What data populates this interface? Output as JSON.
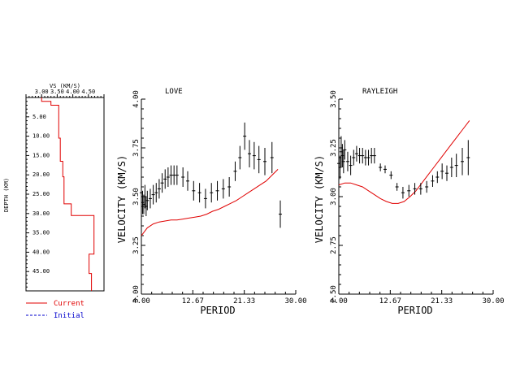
{
  "chart_data": [
    {
      "type": "line",
      "panel": "depth-profile",
      "title": "VS (KM/S)",
      "xlabel": "VS (KM/S)",
      "ylabel": "DEPTH (KM)",
      "x_tick_labels": [
        "3.00",
        "3.50",
        "4.00",
        "4.50"
      ],
      "y_tick_labels": [
        "5.00",
        "10.00",
        "15.00",
        "20.00",
        "25.00",
        "30.00",
        "35.00",
        "40.00",
        "45.00"
      ],
      "xlim": [
        2.5,
        5.0
      ],
      "ylim": [
        0,
        50
      ],
      "grid": false,
      "series": [
        {
          "name": "Current",
          "color": "#e00000",
          "depth": [
            0,
            1,
            1,
            2,
            2,
            10.5,
            10.5,
            16.5,
            16.5,
            20.5,
            20.5,
            27.5,
            27.5,
            30.5,
            30.5,
            40.5,
            40.5,
            45.5,
            45.5,
            50
          ],
          "vs": [
            3.0,
            3.0,
            3.3,
            3.3,
            3.55,
            3.55,
            3.6,
            3.6,
            3.68,
            3.68,
            3.72,
            3.72,
            3.95,
            3.95,
            4.68,
            4.68,
            4.52,
            4.52,
            4.6,
            4.6
          ]
        }
      ],
      "legend": {
        "placement": "bottom-left",
        "entries": [
          {
            "label": "Current",
            "color": "#e00000",
            "style": "solid"
          },
          {
            "label": "Initial",
            "color": "#0000cc",
            "style": "dashed"
          }
        ]
      }
    },
    {
      "type": "scatter",
      "panel": "love",
      "title": "LOVE",
      "xlabel": "PERIOD",
      "ylabel": "VELOCITY (KM/S)",
      "x_tick_labels": [
        "4.00",
        "12.67",
        "21.33",
        "30.00"
      ],
      "y_tick_labels": [
        "3.00",
        "3.25",
        "3.50",
        "3.75",
        "4.00"
      ],
      "xlim": [
        4.0,
        30.0
      ],
      "ylim": [
        3.0,
        4.0
      ],
      "grid": false,
      "observed": {
        "x": [
          4.0,
          4.2,
          4.4,
          4.6,
          4.8,
          5.0,
          5.5,
          6.0,
          6.5,
          7.0,
          7.5,
          8.0,
          8.5,
          9.0,
          9.5,
          10.0,
          11.0,
          11.8,
          12.8,
          13.8,
          14.8,
          15.8,
          16.8,
          17.8,
          18.8,
          19.8,
          20.6,
          21.4,
          22.2,
          23.0,
          23.8,
          24.8,
          26.0
        ],
        "y": [
          3.52,
          3.47,
          3.46,
          3.5,
          3.45,
          3.48,
          3.49,
          3.51,
          3.52,
          3.54,
          3.57,
          3.59,
          3.6,
          3.61,
          3.61,
          3.61,
          3.6,
          3.58,
          3.53,
          3.52,
          3.49,
          3.52,
          3.53,
          3.54,
          3.55,
          3.63,
          3.7,
          3.81,
          3.72,
          3.71,
          3.69,
          3.68,
          3.7
        ],
        "err": [
          0.05,
          0.06,
          0.05,
          0.06,
          0.05,
          0.05,
          0.05,
          0.05,
          0.05,
          0.05,
          0.05,
          0.05,
          0.05,
          0.05,
          0.05,
          0.05,
          0.05,
          0.05,
          0.05,
          0.05,
          0.05,
          0.05,
          0.05,
          0.05,
          0.05,
          0.05,
          0.06,
          0.07,
          0.07,
          0.07,
          0.07,
          0.07,
          0.08
        ]
      },
      "extra_point": {
        "x": 27.4,
        "y": 3.41,
        "err": 0.07
      },
      "model": {
        "x": [
          4.0,
          4.5,
          5.0,
          6.0,
          7.0,
          8.0,
          9.0,
          10.0,
          11.0,
          12.0,
          13.0,
          14.0,
          15.0,
          16.0,
          17.0,
          18.0,
          19.0,
          20.0,
          21.0,
          22.0,
          23.0,
          24.0,
          25.0,
          26.0,
          27.0
        ],
        "y": [
          3.3,
          3.32,
          3.34,
          3.36,
          3.37,
          3.375,
          3.38,
          3.38,
          3.385,
          3.39,
          3.395,
          3.4,
          3.41,
          3.425,
          3.435,
          3.45,
          3.465,
          3.48,
          3.5,
          3.52,
          3.54,
          3.56,
          3.58,
          3.61,
          3.64
        ]
      }
    },
    {
      "type": "scatter",
      "panel": "rayleigh",
      "title": "RAYLEIGH",
      "xlabel": "PERIOD",
      "ylabel": "VELOCITY (KM/S)",
      "x_tick_labels": [
        "4.00",
        "12.67",
        "21.33",
        "30.00"
      ],
      "y_tick_labels": [
        "2.50",
        "2.75",
        "3.00",
        "3.25",
        "3.50"
      ],
      "xlim": [
        4.0,
        30.0
      ],
      "ylim": [
        2.5,
        3.5
      ],
      "grid": false,
      "observed": {
        "x": [
          4.0,
          4.2,
          4.4,
          4.6,
          4.8,
          5.0,
          5.5,
          6.0,
          6.5,
          7.0,
          7.5,
          8.0,
          8.5,
          9.0,
          9.5,
          10.0,
          11.0,
          11.8,
          12.8,
          13.8,
          14.8,
          15.8,
          16.8,
          17.8,
          18.8,
          19.8,
          20.6,
          21.4,
          22.2,
          23.0,
          23.8,
          24.8,
          25.8
        ],
        "y": [
          3.17,
          3.15,
          3.23,
          3.21,
          3.18,
          3.24,
          3.18,
          3.16,
          3.2,
          3.22,
          3.21,
          3.21,
          3.2,
          3.2,
          3.21,
          3.21,
          3.15,
          3.14,
          3.11,
          3.05,
          3.02,
          3.03,
          3.04,
          3.04,
          3.05,
          3.08,
          3.1,
          3.13,
          3.12,
          3.15,
          3.16,
          3.18,
          3.2
        ],
        "err": [
          0.05,
          0.06,
          0.08,
          0.06,
          0.06,
          0.05,
          0.05,
          0.05,
          0.04,
          0.04,
          0.04,
          0.04,
          0.04,
          0.04,
          0.04,
          0.04,
          0.02,
          0.02,
          0.02,
          0.02,
          0.03,
          0.03,
          0.03,
          0.03,
          0.03,
          0.03,
          0.03,
          0.04,
          0.04,
          0.05,
          0.06,
          0.07,
          0.09
        ]
      },
      "model": {
        "x": [
          4.0,
          5.0,
          6.0,
          7.0,
          8.0,
          9.0,
          10.0,
          11.0,
          12.0,
          13.0,
          14.0,
          15.0,
          16.0,
          17.0,
          18.0,
          19.0,
          20.0,
          21.0,
          22.0,
          23.0,
          24.0,
          25.0,
          26.0
        ],
        "y": [
          3.06,
          3.07,
          3.07,
          3.06,
          3.05,
          3.03,
          3.01,
          2.99,
          2.975,
          2.965,
          2.965,
          2.975,
          3.0,
          3.03,
          3.07,
          3.11,
          3.15,
          3.19,
          3.23,
          3.27,
          3.31,
          3.35,
          3.39
        ]
      }
    }
  ]
}
